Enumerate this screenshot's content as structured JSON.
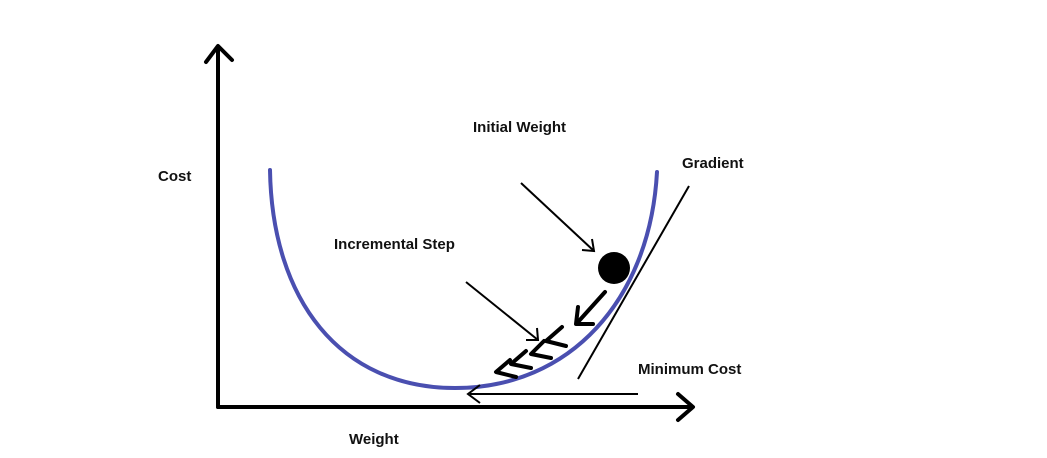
{
  "labels": {
    "cost": "Cost",
    "weight": "Weight",
    "initial_weight": "Initial Weight",
    "gradient": "Gradient",
    "incremental_step": "Incremental Step",
    "minimum_cost": "Minimum Cost"
  },
  "colors": {
    "curve": "#4a4fb0",
    "ink": "#000000",
    "background": "#ffffff"
  }
}
